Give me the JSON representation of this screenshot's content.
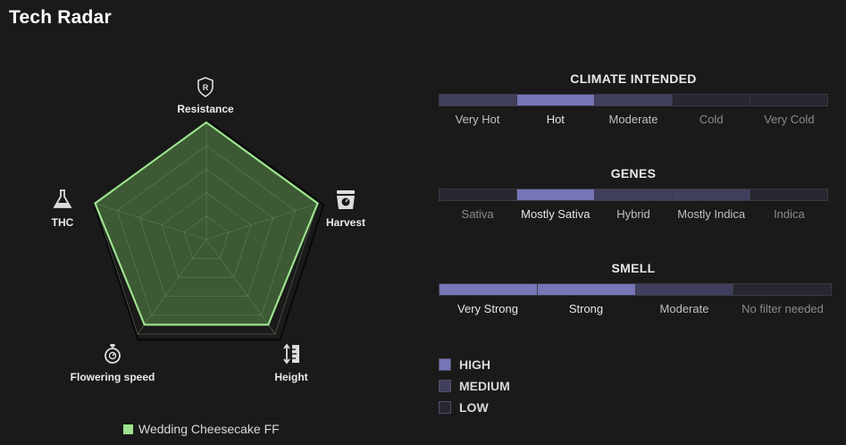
{
  "title": "Tech Radar",
  "colors": {
    "background": "#1a1a1a",
    "radar_fill": "#3d5a34",
    "radar_stroke": "#9de38f",
    "high": "#7676b8",
    "medium": "#40405e",
    "low": "#27272f"
  },
  "chart_data": {
    "type": "radar",
    "axes": [
      {
        "label": "Resistance",
        "icon": "shield-r-icon"
      },
      {
        "label": "Harvest",
        "icon": "scale-weight-icon"
      },
      {
        "label": "Height",
        "icon": "ruler-arrows-icon"
      },
      {
        "label": "Flowering speed",
        "icon": "stopwatch-icon"
      },
      {
        "label": "THC",
        "icon": "flask-icon"
      }
    ],
    "levels": 5,
    "max": 5,
    "series": [
      {
        "name": "Wedding Cheesecake FF",
        "values": [
          5,
          5,
          4.5,
          4.5,
          5
        ]
      }
    ]
  },
  "legend": {
    "label": "Wedding Cheesecake FF"
  },
  "scales": [
    {
      "title": "CLIMATE INTENDED",
      "segments": [
        {
          "label": "Very Hot",
          "level": "medium"
        },
        {
          "label": "Hot",
          "level": "high"
        },
        {
          "label": "Moderate",
          "level": "medium"
        },
        {
          "label": "Cold",
          "level": "low"
        },
        {
          "label": "Very Cold",
          "level": "low"
        }
      ]
    },
    {
      "title": "GENES",
      "segments": [
        {
          "label": "Sativa",
          "level": "low"
        },
        {
          "label": "Mostly Sativa",
          "level": "high"
        },
        {
          "label": "Hybrid",
          "level": "medium"
        },
        {
          "label": "Mostly Indica",
          "level": "medium"
        },
        {
          "label": "Indica",
          "level": "low"
        }
      ]
    },
    {
      "title": "SMELL",
      "segments": [
        {
          "label": "Very Strong",
          "level": "high"
        },
        {
          "label": "Strong",
          "level": "high"
        },
        {
          "label": "Moderate",
          "level": "medium"
        },
        {
          "label": "No filter needed",
          "level": "low"
        }
      ]
    }
  ],
  "key": [
    {
      "label": "HIGH",
      "level": "high"
    },
    {
      "label": "MEDIUM",
      "level": "medium"
    },
    {
      "label": "LOW",
      "level": "low"
    }
  ]
}
